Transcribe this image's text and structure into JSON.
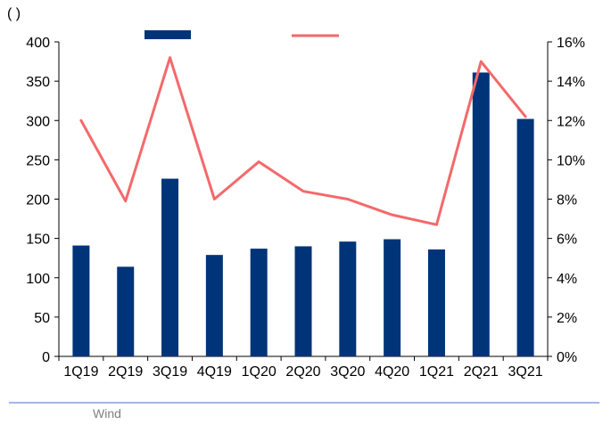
{
  "chart_data": {
    "type": "bar",
    "title": "",
    "left_unit_label": "(    )",
    "categories": [
      "1Q19",
      "2Q19",
      "3Q19",
      "4Q19",
      "1Q20",
      "2Q20",
      "3Q20",
      "4Q20",
      "1Q21",
      "2Q21",
      "3Q21"
    ],
    "series": [
      {
        "type": "bar",
        "axis": "left",
        "color": "#003478",
        "values": [
          141,
          114,
          226,
          129,
          137,
          140,
          146,
          149,
          136,
          361,
          302
        ]
      },
      {
        "type": "line",
        "axis": "right",
        "color": "#f4696b",
        "values": [
          0.12,
          0.079,
          0.152,
          0.08,
          0.099,
          0.084,
          0.08,
          0.072,
          0.067,
          0.15,
          0.122
        ]
      }
    ],
    "y_left": {
      "ylim": [
        0,
        400
      ],
      "ticks": [
        0,
        50,
        100,
        150,
        200,
        250,
        300,
        350,
        400
      ],
      "tick_labels": [
        "0",
        "50",
        "100",
        "150",
        "200",
        "250",
        "300",
        "350",
        "400"
      ]
    },
    "y_right": {
      "ylim": [
        0,
        0.16
      ],
      "ticks": [
        0,
        0.02,
        0.04,
        0.06,
        0.08,
        0.1,
        0.12,
        0.14,
        0.16
      ],
      "tick_labels": [
        "0%",
        "2%",
        "4%",
        "6%",
        "8%",
        "10%",
        "12%",
        "14%",
        "16%"
      ]
    },
    "grid": false,
    "legend_position": "top-center"
  },
  "source": {
    "text": "Wind"
  }
}
